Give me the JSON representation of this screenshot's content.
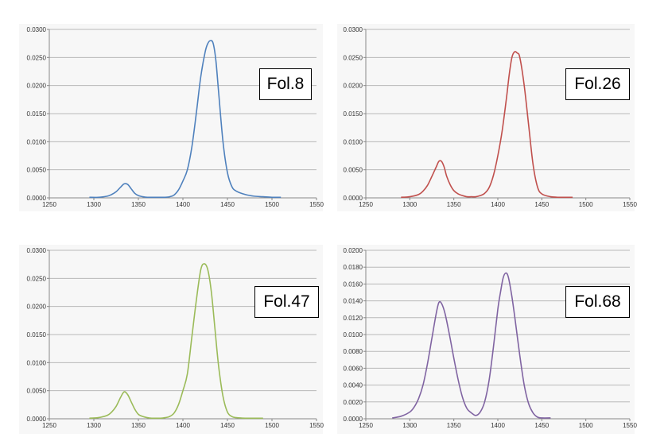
{
  "chart_data": [
    {
      "type": "line",
      "title": "",
      "xlabel": "",
      "ylabel": "",
      "annotation": "Fol.8",
      "xlim": [
        1250,
        1550
      ],
      "ylim": [
        0,
        0.03
      ],
      "x_ticks": [
        "1250",
        "1300",
        "1350",
        "1400",
        "1450",
        "1500",
        "1550"
      ],
      "y_ticks": [
        "0.0000",
        "0.0050",
        "0.0100",
        "0.0150",
        "0.0200",
        "0.0250",
        "0.0300"
      ],
      "grid": true,
      "color": "#4f81bd",
      "series": [
        {
          "x": [
            1295,
            1305,
            1315,
            1320,
            1325,
            1330,
            1334,
            1338,
            1342,
            1346,
            1350,
            1355,
            1360,
            1365,
            1370,
            1375,
            1380,
            1385,
            1390,
            1395,
            1400,
            1405,
            1410,
            1415,
            1420,
            1425,
            1428,
            1431,
            1434,
            1437,
            1440,
            1445,
            1450,
            1455,
            1460,
            1470,
            1480,
            1490,
            1500,
            1510
          ],
          "y": [
            0.0001,
            0.0001,
            0.0003,
            0.0006,
            0.0011,
            0.0019,
            0.0025,
            0.0024,
            0.0016,
            0.0008,
            0.0004,
            0.0002,
            0.0001,
            0.0001,
            0.0001,
            0.0001,
            0.0001,
            0.0002,
            0.0005,
            0.0014,
            0.003,
            0.005,
            0.009,
            0.015,
            0.0215,
            0.026,
            0.0275,
            0.028,
            0.0275,
            0.0245,
            0.019,
            0.01,
            0.0045,
            0.002,
            0.0012,
            0.0006,
            0.0003,
            0.0002,
            0.0001,
            0.0001
          ]
        }
      ]
    },
    {
      "type": "line",
      "title": "",
      "xlabel": "",
      "ylabel": "",
      "annotation": "Fol.26",
      "xlim": [
        1250,
        1550
      ],
      "ylim": [
        0,
        0.03
      ],
      "x_ticks": [
        "1250",
        "1300",
        "1350",
        "1400",
        "1450",
        "1500",
        "1550"
      ],
      "y_ticks": [
        "0.0000",
        "0.0050",
        "0.0100",
        "0.0150",
        "0.0200",
        "0.0250",
        "0.0300"
      ],
      "grid": true,
      "color": "#c0504d",
      "series": [
        {
          "x": [
            1290,
            1300,
            1310,
            1315,
            1320,
            1325,
            1330,
            1333,
            1336,
            1339,
            1342,
            1346,
            1350,
            1355,
            1360,
            1365,
            1370,
            1375,
            1380,
            1385,
            1390,
            1395,
            1400,
            1405,
            1410,
            1413,
            1416,
            1419,
            1422,
            1425,
            1430,
            1435,
            1440,
            1445,
            1450,
            1460,
            1470,
            1480,
            1485
          ],
          "y": [
            0.0001,
            0.0002,
            0.0006,
            0.0012,
            0.0022,
            0.0038,
            0.0055,
            0.0065,
            0.0065,
            0.0055,
            0.0038,
            0.0023,
            0.0013,
            0.0007,
            0.0004,
            0.0002,
            0.0002,
            0.0002,
            0.0004,
            0.0008,
            0.0018,
            0.004,
            0.0075,
            0.012,
            0.018,
            0.022,
            0.025,
            0.026,
            0.0258,
            0.025,
            0.02,
            0.013,
            0.006,
            0.002,
            0.0007,
            0.0002,
            0.0001,
            0.0001,
            0.0001
          ]
        }
      ]
    },
    {
      "type": "line",
      "title": "",
      "xlabel": "",
      "ylabel": "",
      "annotation": "Fol.47",
      "xlim": [
        1250,
        1550
      ],
      "ylim": [
        0,
        0.03
      ],
      "x_ticks": [
        "1250",
        "1300",
        "1350",
        "1400",
        "1450",
        "1500",
        "1550"
      ],
      "y_ticks": [
        "0.0000",
        "0.0050",
        "0.0100",
        "0.0150",
        "0.0200",
        "0.0250",
        "0.0300"
      ],
      "grid": true,
      "color": "#9bbb59",
      "series": [
        {
          "x": [
            1295,
            1305,
            1315,
            1320,
            1325,
            1330,
            1334,
            1338,
            1342,
            1346,
            1350,
            1355,
            1360,
            1365,
            1370,
            1375,
            1380,
            1385,
            1390,
            1395,
            1400,
            1405,
            1410,
            1415,
            1420,
            1424,
            1428,
            1432,
            1436,
            1440,
            1445,
            1450,
            1455,
            1460,
            1470,
            1480,
            1490
          ],
          "y": [
            0.0001,
            0.0002,
            0.0006,
            0.0012,
            0.0022,
            0.0038,
            0.0048,
            0.0043,
            0.003,
            0.0017,
            0.0008,
            0.0004,
            0.0002,
            0.0001,
            0.0001,
            0.0001,
            0.0002,
            0.0004,
            0.001,
            0.0025,
            0.005,
            0.008,
            0.0145,
            0.021,
            0.0265,
            0.0276,
            0.0265,
            0.0225,
            0.016,
            0.0095,
            0.004,
            0.0012,
            0.0004,
            0.0002,
            0.0001,
            0.0001,
            0.0001
          ]
        }
      ]
    },
    {
      "type": "line",
      "title": "",
      "xlabel": "",
      "ylabel": "",
      "annotation": "Fol.68",
      "xlim": [
        1250,
        1550
      ],
      "ylim": [
        0,
        0.02
      ],
      "x_ticks": [
        "1250",
        "1300",
        "1350",
        "1400",
        "1450",
        "1500",
        "1550"
      ],
      "y_ticks": [
        "0.0000",
        "0.0020",
        "0.0040",
        "0.0060",
        "0.0080",
        "0.0100",
        "0.0120",
        "0.0140",
        "0.0160",
        "0.0180",
        "0.0200"
      ],
      "grid": true,
      "color": "#8064a2",
      "series": [
        {
          "x": [
            1280,
            1290,
            1300,
            1305,
            1310,
            1315,
            1320,
            1325,
            1330,
            1333,
            1336,
            1340,
            1345,
            1350,
            1355,
            1360,
            1365,
            1370,
            1375,
            1380,
            1385,
            1390,
            1395,
            1400,
            1403,
            1406,
            1409,
            1412,
            1416,
            1420,
            1425,
            1430,
            1435,
            1440,
            1445,
            1450,
            1460
          ],
          "y": [
            0.0001,
            0.0003,
            0.0008,
            0.0014,
            0.0024,
            0.004,
            0.0065,
            0.0095,
            0.0125,
            0.0138,
            0.0137,
            0.0125,
            0.01,
            0.0072,
            0.0046,
            0.0025,
            0.0012,
            0.0007,
            0.0004,
            0.0008,
            0.002,
            0.0045,
            0.0085,
            0.013,
            0.015,
            0.0167,
            0.0173,
            0.0168,
            0.0145,
            0.0115,
            0.0075,
            0.004,
            0.0018,
            0.0007,
            0.0002,
            0.0001,
            0.0001
          ]
        }
      ]
    }
  ]
}
